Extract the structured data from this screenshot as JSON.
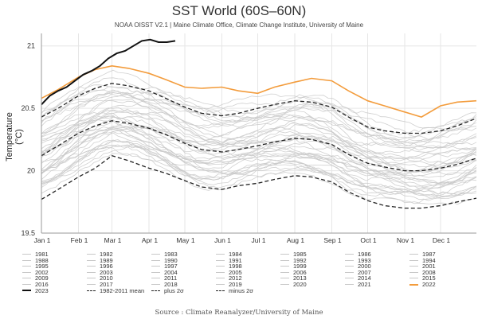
{
  "header": {
    "title": "SST World (60S–60N)",
    "subtitle": "NOAA OISST V2.1 | Maine Climate Office, Climate Change Institute, University of Maine"
  },
  "footer": {
    "source": "Source : Climate Reanalyzer/University of Maine"
  },
  "colors": {
    "background_years": "#c8c8c8",
    "year_2022": "#f39c3c",
    "year_2023": "#111111",
    "mean": "#222222",
    "grid": "#e6e6e6"
  },
  "chart_data": {
    "type": "line",
    "title": "SST World (60S–60N)",
    "ylabel": "Temperature (°C)",
    "xlabel": "",
    "ylim": [
      19.5,
      21.1
    ],
    "yticks": [
      "19.5",
      "20",
      "20.5",
      "21"
    ],
    "xticks": [
      "Jan 1",
      "Feb 1",
      "Mar 1",
      "Apr 1",
      "May 1",
      "Jun 1",
      "Jul 1",
      "Aug 1",
      "Sep 1",
      "Oct 1",
      "Nov 1",
      "Dec 1"
    ],
    "x_unit": "day of year",
    "grid": true,
    "legend_position": "bottom",
    "series": [
      {
        "name": "1982-2011 mean",
        "style": "dashed",
        "x": [
          1,
          15,
          32,
          46,
          60,
          74,
          91,
          105,
          121,
          135,
          152,
          166,
          182,
          196,
          213,
          227,
          244,
          258,
          274,
          288,
          305,
          319,
          335,
          349,
          365
        ],
        "values": [
          20.12,
          20.2,
          20.3,
          20.36,
          20.4,
          20.38,
          20.34,
          20.29,
          20.22,
          20.17,
          20.15,
          20.17,
          20.2,
          20.23,
          20.26,
          20.25,
          20.21,
          20.13,
          20.06,
          20.03,
          20.0,
          20.0,
          20.02,
          20.05,
          20.1
        ]
      },
      {
        "name": "plus 2σ",
        "style": "dashed",
        "x": [
          1,
          15,
          32,
          46,
          60,
          74,
          91,
          105,
          121,
          135,
          152,
          166,
          182,
          196,
          213,
          227,
          244,
          258,
          274,
          288,
          305,
          319,
          335,
          349,
          365
        ],
        "values": [
          20.43,
          20.5,
          20.6,
          20.66,
          20.7,
          20.68,
          20.64,
          20.58,
          20.51,
          20.46,
          20.44,
          20.46,
          20.5,
          20.53,
          20.56,
          20.55,
          20.51,
          20.43,
          20.35,
          20.32,
          20.3,
          20.3,
          20.32,
          20.36,
          20.42
        ]
      },
      {
        "name": "minus 2σ",
        "style": "dashed",
        "x": [
          1,
          15,
          32,
          46,
          60,
          74,
          91,
          105,
          121,
          135,
          152,
          166,
          182,
          196,
          213,
          227,
          244,
          258,
          274,
          288,
          305,
          319,
          335,
          349,
          365
        ],
        "values": [
          19.77,
          19.85,
          19.95,
          20.02,
          20.12,
          20.08,
          20.02,
          19.98,
          19.92,
          19.87,
          19.85,
          19.88,
          19.9,
          19.93,
          19.96,
          19.95,
          19.91,
          19.83,
          19.76,
          19.72,
          19.7,
          19.7,
          19.72,
          19.75,
          19.78
        ]
      },
      {
        "name": "2022",
        "style": "solid",
        "x": [
          1,
          15,
          32,
          46,
          60,
          74,
          91,
          105,
          121,
          135,
          152,
          166,
          182,
          196,
          213,
          227,
          244,
          258,
          274,
          288,
          305,
          319,
          335,
          349,
          365
        ],
        "values": [
          20.58,
          20.65,
          20.75,
          20.81,
          20.84,
          20.82,
          20.78,
          20.73,
          20.67,
          20.66,
          20.67,
          20.64,
          20.62,
          20.67,
          20.71,
          20.74,
          20.72,
          20.64,
          20.56,
          20.52,
          20.47,
          20.43,
          20.52,
          20.55,
          20.56
        ]
      },
      {
        "name": "2023",
        "style": "solid",
        "x": [
          1,
          8,
          15,
          22,
          29,
          36,
          43,
          50,
          57,
          64,
          71,
          78,
          85,
          92,
          99,
          106,
          113
        ],
        "values": [
          20.53,
          20.6,
          20.64,
          20.67,
          20.72,
          20.77,
          20.8,
          20.84,
          20.9,
          20.94,
          20.96,
          21.0,
          21.04,
          21.05,
          21.03,
          21.03,
          21.04
        ]
      }
    ],
    "background_series_note": "",
    "legend": [
      "1981",
      "1982",
      "1983",
      "1984",
      "1985",
      "1986",
      "1987",
      "1988",
      "1989",
      "1990",
      "1991",
      "1992",
      "1993",
      "1994",
      "1995",
      "1996",
      "1997",
      "1998",
      "1999",
      "2000",
      "2001",
      "2002",
      "2003",
      "2004",
      "2005",
      "2006",
      "2007",
      "2008",
      "2009",
      "2010",
      "2011",
      "2012",
      "2013",
      "2014",
      "2015",
      "2016",
      "2017",
      "2018",
      "2019",
      "2020",
      "2021",
      "2022",
      "2023",
      "1982-2011 mean",
      "plus 2σ",
      "minus 2σ"
    ]
  }
}
